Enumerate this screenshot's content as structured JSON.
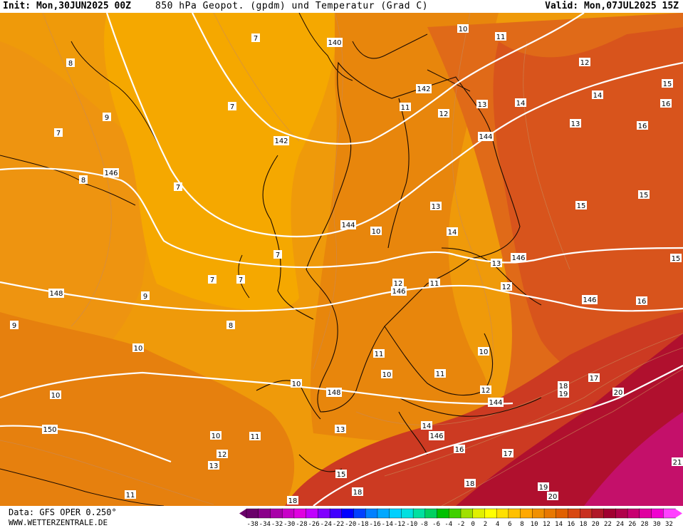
{
  "header": {
    "init": "Init: Mon,30JUN2025 00Z",
    "title": "850 hPa Geopot. (gpdm) und Temperatur (Grad C)",
    "valid": "Valid: Mon,07JUL2025 15Z"
  },
  "footer": {
    "data_source": "Data: GFS OPER 0.250°",
    "website": "WWW.WETTERZENTRALE.DE"
  },
  "legend": {
    "ticks": [
      "-38",
      "-34",
      "-32",
      "-30",
      "-28",
      "-26",
      "-24",
      "-22",
      "-20",
      "-18",
      "-16",
      "-14",
      "-12",
      "-10",
      "-8",
      "-6",
      "-4",
      "-2",
      "0",
      "2",
      "4",
      "6",
      "8",
      "10",
      "12",
      "14",
      "16",
      "18",
      "20",
      "22",
      "24",
      "26",
      "28",
      "30",
      "32"
    ],
    "colors": [
      "#6a006a",
      "#8a008a",
      "#a800a8",
      "#c800c8",
      "#e000e0",
      "#c000ff",
      "#8000ff",
      "#4000ff",
      "#0000ff",
      "#0040ff",
      "#0080ff",
      "#00a8ff",
      "#00d0ff",
      "#00e0e0",
      "#00e0a0",
      "#00d060",
      "#00c000",
      "#40d000",
      "#a0e000",
      "#e0f000",
      "#ffff00",
      "#ffe000",
      "#ffc000",
      "#ffa800",
      "#f09000",
      "#e87800",
      "#e06000",
      "#d84810",
      "#c83020",
      "#b01828",
      "#a00030",
      "#b0004a",
      "#c80070",
      "#e000a0",
      "#f000d0",
      "#ff40ff"
    ]
  },
  "map": {
    "geopotential_labels": [
      "140",
      "142",
      "144",
      "146",
      "148",
      "150",
      "142",
      "144",
      "146",
      "146",
      "148",
      "144",
      "146",
      "146",
      "140"
    ],
    "temperature_labels": [
      "7",
      "8",
      "9",
      "7",
      "8",
      "7",
      "9",
      "10",
      "11",
      "12",
      "13",
      "14",
      "15",
      "16",
      "17",
      "18",
      "19",
      "20",
      "21"
    ]
  }
}
